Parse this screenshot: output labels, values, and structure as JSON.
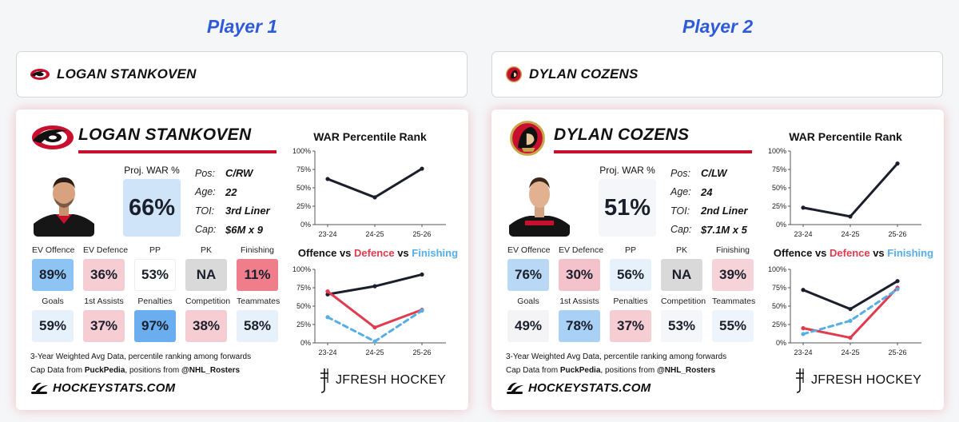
{
  "players": [
    {
      "heading": "Player 1",
      "search_name": "LOGAN STANKOVEN",
      "name": "LOGAN STANKOVEN",
      "team_logo": "hurricanes-logo",
      "proj_war_label": "Proj. WAR %",
      "proj_war": "66%",
      "proj_war_color": "#cfe4f8",
      "info": [
        {
          "key": "Pos:",
          "value": "C/RW"
        },
        {
          "key": "Age:",
          "value": "22"
        },
        {
          "key": "TOI:",
          "value": "3rd Liner"
        },
        {
          "key": "Cap:",
          "value": "$6M x 9"
        }
      ],
      "stats_row1": [
        {
          "label": "EV Offence",
          "value": "89%",
          "color": "#8ec4f3"
        },
        {
          "label": "EV Defence",
          "value": "36%",
          "color": "#f5cdd3"
        },
        {
          "label": "PP",
          "value": "53%",
          "color": "#ffffff"
        },
        {
          "label": "PK",
          "value": "NA",
          "color": "#d9d9d9"
        },
        {
          "label": "Finishing",
          "value": "11%",
          "color": "#ef7d8b"
        }
      ],
      "stats_row2": [
        {
          "label": "Goals",
          "value": "59%",
          "color": "#e7f1fb"
        },
        {
          "label": "1st Assists",
          "value": "37%",
          "color": "#f5cdd3"
        },
        {
          "label": "Penalties",
          "value": "97%",
          "color": "#6aaef0"
        },
        {
          "label": "Competition",
          "value": "38%",
          "color": "#f5cdd3"
        },
        {
          "label": "Teammates",
          "value": "58%",
          "color": "#e7f1fb"
        }
      ],
      "note_line1": "3-Year Weighted Avg Data, percentile ranking among forwards",
      "note_line2_prefix": "Cap Data from ",
      "note_line2_src": "PuckPedia",
      "note_line2_mid": ", positions from ",
      "note_line2_src2": "@NHL_Rosters",
      "hs_label": "HOCKEYSTATS.COM",
      "jf_label": "JFRESH HOCKEY",
      "war_title": "WAR Percentile Rank",
      "ovd_o": "Offence",
      "ovd_vs1": " vs ",
      "ovd_d": "Defence",
      "ovd_vs2": " vs ",
      "ovd_f": "Finishing"
    },
    {
      "heading": "Player 2",
      "search_name": "DYLAN COZENS",
      "name": "DYLAN COZENS",
      "team_logo": "senators-logo",
      "proj_war_label": "Proj. WAR %",
      "proj_war": "51%",
      "proj_war_color": "#f4f6f9",
      "info": [
        {
          "key": "Pos:",
          "value": "C/LW"
        },
        {
          "key": "Age:",
          "value": "24"
        },
        {
          "key": "TOI:",
          "value": "2nd Liner"
        },
        {
          "key": "Cap:",
          "value": "$7.1M x 5"
        }
      ],
      "stats_row1": [
        {
          "label": "EV Offence",
          "value": "76%",
          "color": "#b8d8f6"
        },
        {
          "label": "EV Defence",
          "value": "30%",
          "color": "#f3c2ca"
        },
        {
          "label": "PP",
          "value": "56%",
          "color": "#e7f1fb"
        },
        {
          "label": "PK",
          "value": "NA",
          "color": "#d9d9d9"
        },
        {
          "label": "Finishing",
          "value": "39%",
          "color": "#f5d3d8"
        }
      ],
      "stats_row2": [
        {
          "label": "Goals",
          "value": "49%",
          "color": "#f4f4f6"
        },
        {
          "label": "1st Assists",
          "value": "78%",
          "color": "#a9d0f5"
        },
        {
          "label": "Penalties",
          "value": "37%",
          "color": "#f5cdd3"
        },
        {
          "label": "Competition",
          "value": "53%",
          "color": "#f4f6f9"
        },
        {
          "label": "Teammates",
          "value": "55%",
          "color": "#eef4fb"
        }
      ],
      "note_line1": "3-Year Weighted Avg Data, percentile ranking among forwards",
      "note_line2_prefix": "Cap Data from ",
      "note_line2_src": "PuckPedia",
      "note_line2_mid": ", positions from ",
      "note_line2_src2": "@NHL_Rosters",
      "hs_label": "HOCKEYSTATS.COM",
      "jf_label": "JFRESH HOCKEY",
      "war_title": "WAR Percentile Rank",
      "ovd_o": "Offence",
      "ovd_vs1": " vs ",
      "ovd_d": "Defence",
      "ovd_vs2": " vs ",
      "ovd_f": "Finishing"
    }
  ],
  "chart_data": [
    {
      "type": "line",
      "title": "WAR Percentile Rank",
      "player": "LOGAN STANKOVEN",
      "categories": [
        "23-24",
        "24-25",
        "25-26"
      ],
      "yticks": [
        "0%",
        "25%",
        "50%",
        "75%",
        "100%"
      ],
      "ylim": [
        0,
        100
      ],
      "series": [
        {
          "name": "WAR",
          "values": [
            62,
            37,
            76
          ],
          "color": "#1a1f2b"
        }
      ]
    },
    {
      "type": "line",
      "title": "Offence vs Defence vs Finishing",
      "player": "LOGAN STANKOVEN",
      "categories": [
        "23-24",
        "24-25",
        "25-26"
      ],
      "yticks": [
        "0%",
        "25%",
        "50%",
        "75%",
        "100%"
      ],
      "ylim": [
        0,
        100
      ],
      "series": [
        {
          "name": "Offence",
          "values": [
            66,
            77,
            93
          ],
          "color": "#1a1f2b"
        },
        {
          "name": "Defence",
          "values": [
            70,
            21,
            45
          ],
          "color": "#e03b4e"
        },
        {
          "name": "Finishing",
          "values": [
            35,
            2,
            44
          ],
          "color": "#55aee6"
        }
      ]
    },
    {
      "type": "line",
      "title": "WAR Percentile Rank",
      "player": "DYLAN COZENS",
      "categories": [
        "23-24",
        "24-25",
        "25-26"
      ],
      "yticks": [
        "0%",
        "25%",
        "50%",
        "75%",
        "100%"
      ],
      "ylim": [
        0,
        100
      ],
      "series": [
        {
          "name": "WAR",
          "values": [
            23,
            11,
            83
          ],
          "color": "#1a1f2b"
        }
      ]
    },
    {
      "type": "line",
      "title": "Offence vs Defence vs Finishing",
      "player": "DYLAN COZENS",
      "categories": [
        "23-24",
        "24-25",
        "25-26"
      ],
      "yticks": [
        "0%",
        "25%",
        "50%",
        "75%",
        "100%"
      ],
      "ylim": [
        0,
        100
      ],
      "series": [
        {
          "name": "Offence",
          "values": [
            72,
            46,
            84
          ],
          "color": "#1a1f2b"
        },
        {
          "name": "Defence",
          "values": [
            20,
            7,
            75
          ],
          "color": "#e03b4e"
        },
        {
          "name": "Finishing",
          "values": [
            12,
            30,
            73
          ],
          "color": "#55aee6"
        }
      ]
    }
  ]
}
